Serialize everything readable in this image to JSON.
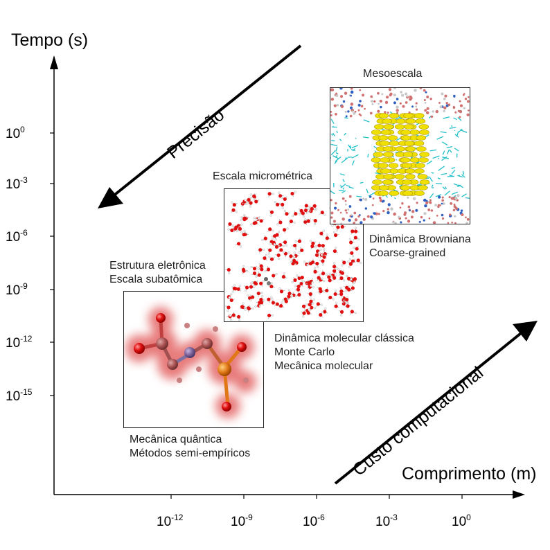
{
  "axes": {
    "y_title": "Tempo (s)",
    "x_title": "Comprimento (m)",
    "y_ticks": [
      {
        "base": "10",
        "exp": "0"
      },
      {
        "base": "10",
        "exp": "-3"
      },
      {
        "base": "10",
        "exp": "-6"
      },
      {
        "base": "10",
        "exp": "-9"
      },
      {
        "base": "10",
        "exp": "-12"
      },
      {
        "base": "10",
        "exp": "-15"
      }
    ],
    "x_ticks": [
      {
        "base": "10",
        "exp": "-12"
      },
      {
        "base": "10",
        "exp": "-9"
      },
      {
        "base": "10",
        "exp": "-6"
      },
      {
        "base": "10",
        "exp": "-3"
      },
      {
        "base": "10",
        "exp": "0"
      }
    ]
  },
  "arrows": {
    "precision_label": "Precisão",
    "cost_label": "Custo computacional"
  },
  "panels": {
    "quantum": {
      "top_caption": [
        "Estrutura eletrônica",
        "Escala subatômica"
      ],
      "bottom_caption": [
        "Mecânica quântica",
        "Métodos semi-empíricos"
      ]
    },
    "micro": {
      "top_caption": [
        "Escala micrométrica"
      ],
      "bottom_caption": [
        "Dinâmica molecular clássica",
        "Monte Carlo",
        "Mecânica molecular"
      ]
    },
    "meso": {
      "top_caption": [
        "Mesoescala"
      ],
      "bottom_caption": [
        "Dinâmica Browniana",
        "Coarse-grained"
      ]
    }
  },
  "colors": {
    "axis": "#000000",
    "oxygen": "#e01010",
    "hydrogen": "#f2f2f2",
    "carbon": "#b06060",
    "nitrogen": "#8070a0",
    "phosphorus": "#e07818",
    "lipid_tail": "#20c0c8",
    "protein": "#f0e000"
  }
}
